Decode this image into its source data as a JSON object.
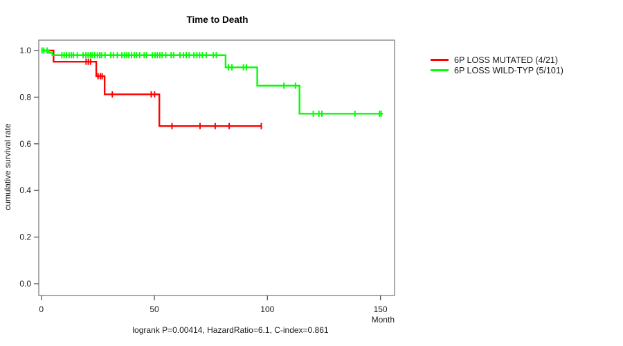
{
  "title": "Time to Death",
  "annotation": "logrank P=0.00414, HazardRatio=6.1, C-index=0.861",
  "x_axis": {
    "label": "Month",
    "ticks": [
      0,
      50,
      100,
      150
    ]
  },
  "y_axis": {
    "label": "cumulative survival rate",
    "ticks": [
      0.0,
      0.2,
      0.4,
      0.6,
      0.8,
      1.0
    ]
  },
  "legend": [
    {
      "label": "6P LOSS MUTATED (4/21)",
      "color": "#ff0000"
    },
    {
      "label": "6P LOSS WILD-TYP (5/101)",
      "color": "#00ff00"
    }
  ],
  "chart_data": {
    "type": "line",
    "subtype": "kaplan-meier-step",
    "title": "Time to Death",
    "xlabel": "Month",
    "ylabel": "cumulative survival rate",
    "xlim": [
      0,
      157
    ],
    "ylim": [
      0,
      1
    ],
    "grid": false,
    "legend_position": "right-outside",
    "statistics_text": "logrank P=0.00414, HazardRatio=6.1, C-index=0.861",
    "series": [
      {
        "name": "6P LOSS MUTATED (4/21)",
        "color": "#ff0000",
        "events_over_n": "4/21",
        "steps": [
          [
            0,
            1.0
          ],
          [
            5.4,
            0.952
          ],
          [
            24.3,
            0.89
          ],
          [
            28.0,
            0.812
          ],
          [
            52.2,
            0.676
          ]
        ],
        "end_month": 97.3,
        "censor_marks": [
          [
            19.8,
            0.952
          ],
          [
            20.8,
            0.952
          ],
          [
            21.8,
            0.952
          ],
          [
            25.1,
            0.89
          ],
          [
            26.1,
            0.89
          ],
          [
            26.9,
            0.89
          ],
          [
            31.4,
            0.812
          ],
          [
            48.6,
            0.812
          ],
          [
            50.1,
            0.812
          ],
          [
            57.8,
            0.676
          ],
          [
            70.2,
            0.676
          ],
          [
            76.9,
            0.676
          ],
          [
            83.1,
            0.676
          ],
          [
            97.3,
            0.676
          ]
        ]
      },
      {
        "name": "6P LOSS WILD-TYP (5/101)",
        "color": "#00ff00",
        "events_over_n": "5/101",
        "steps": [
          [
            0,
            1.0
          ],
          [
            3.4,
            0.99
          ],
          [
            4.9,
            0.98
          ],
          [
            81.5,
            0.928
          ],
          [
            95.5,
            0.849
          ],
          [
            114.2,
            0.729
          ]
        ],
        "end_month": 151.1,
        "censor_marks": [
          [
            0.3,
            1.0
          ],
          [
            1.1,
            1.0
          ],
          [
            2.6,
            1.0
          ],
          [
            9.1,
            0.98
          ],
          [
            10.1,
            0.98
          ],
          [
            11.1,
            0.98
          ],
          [
            12.3,
            0.98
          ],
          [
            13.3,
            0.98
          ],
          [
            14.2,
            0.98
          ],
          [
            15.9,
            0.98
          ],
          [
            18.5,
            0.98
          ],
          [
            19.7,
            0.98
          ],
          [
            20.7,
            0.98
          ],
          [
            21.7,
            0.98
          ],
          [
            22.5,
            0.98
          ],
          [
            23.6,
            0.98
          ],
          [
            24.8,
            0.98
          ],
          [
            25.8,
            0.98
          ],
          [
            26.6,
            0.98
          ],
          [
            28.2,
            0.98
          ],
          [
            30.7,
            0.98
          ],
          [
            31.9,
            0.98
          ],
          [
            33.6,
            0.98
          ],
          [
            35.6,
            0.98
          ],
          [
            36.8,
            0.98
          ],
          [
            37.8,
            0.98
          ],
          [
            38.7,
            0.98
          ],
          [
            39.9,
            0.98
          ],
          [
            41.1,
            0.98
          ],
          [
            42.1,
            0.98
          ],
          [
            43.5,
            0.98
          ],
          [
            45.5,
            0.98
          ],
          [
            46.5,
            0.98
          ],
          [
            49.1,
            0.98
          ],
          [
            50.3,
            0.98
          ],
          [
            51.3,
            0.98
          ],
          [
            52.4,
            0.98
          ],
          [
            53.4,
            0.98
          ],
          [
            55.0,
            0.98
          ],
          [
            57.4,
            0.98
          ],
          [
            58.5,
            0.98
          ],
          [
            61.3,
            0.98
          ],
          [
            62.9,
            0.98
          ],
          [
            64.1,
            0.98
          ],
          [
            65.4,
            0.98
          ],
          [
            67.5,
            0.98
          ],
          [
            68.8,
            0.98
          ],
          [
            70.0,
            0.98
          ],
          [
            71.2,
            0.98
          ],
          [
            72.9,
            0.98
          ],
          [
            76.1,
            0.98
          ],
          [
            77.4,
            0.98
          ],
          [
            82.8,
            0.928
          ],
          [
            84.3,
            0.928
          ],
          [
            89.4,
            0.928
          ],
          [
            90.7,
            0.928
          ],
          [
            107.3,
            0.849
          ],
          [
            112.4,
            0.849
          ],
          [
            120.3,
            0.729
          ],
          [
            122.8,
            0.729
          ],
          [
            124.1,
            0.729
          ],
          [
            138.7,
            0.729
          ],
          [
            149.6,
            0.729
          ],
          [
            150.3,
            0.729
          ]
        ]
      }
    ]
  }
}
